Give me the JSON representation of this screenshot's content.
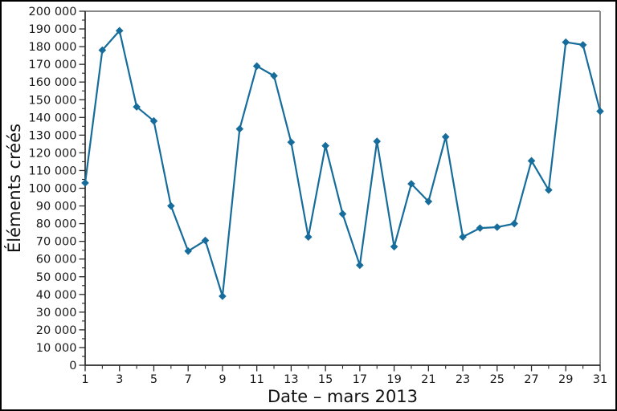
{
  "figure": {
    "background": "#ffffff",
    "outer_border_color": "#000000"
  },
  "chart_data": {
    "type": "line",
    "title": "",
    "xlabel": "Date – mars 2013",
    "ylabel": "Éléments créés",
    "x": [
      1,
      2,
      3,
      4,
      5,
      6,
      7,
      8,
      9,
      10,
      11,
      12,
      13,
      14,
      15,
      16,
      17,
      18,
      19,
      20,
      21,
      22,
      23,
      24,
      25,
      26,
      27,
      28,
      29,
      30,
      31
    ],
    "values": [
      103000,
      178000,
      189000,
      146000,
      138000,
      90000,
      64500,
      70500,
      39000,
      133500,
      169000,
      163500,
      126000,
      72500,
      124000,
      85500,
      56500,
      126500,
      67000,
      102500,
      92500,
      129000,
      72500,
      77500,
      78000,
      80000,
      115500,
      99000,
      182500,
      181000,
      143500
    ],
    "xlim": [
      1,
      31
    ],
    "ylim": [
      0,
      200000
    ],
    "y_major_step": 10000,
    "y_minor_step": 5000,
    "y_tick_labels": [
      "0",
      "10 000",
      "20 000",
      "30 000",
      "40 000",
      "50 000",
      "60 000",
      "70 000",
      "80 000",
      "90 000",
      "100 000",
      "110 000",
      "120 000",
      "130 000",
      "140 000",
      "150 000",
      "160 000",
      "170 000",
      "180 000",
      "190 000",
      "200 000"
    ],
    "x_tick_labels": [
      "1",
      "3",
      "5",
      "7",
      "9",
      "11",
      "13",
      "15",
      "17",
      "19",
      "21",
      "23",
      "25",
      "27",
      "29",
      "31"
    ],
    "grid": false,
    "legend": "none",
    "marker": "diamond",
    "line_color": "#166c9b",
    "marker_color": "#166c9b",
    "text_color": "#1a1a1a",
    "spine_dark_color": "#2a2a2a",
    "spine_gray_color": "#888888"
  }
}
